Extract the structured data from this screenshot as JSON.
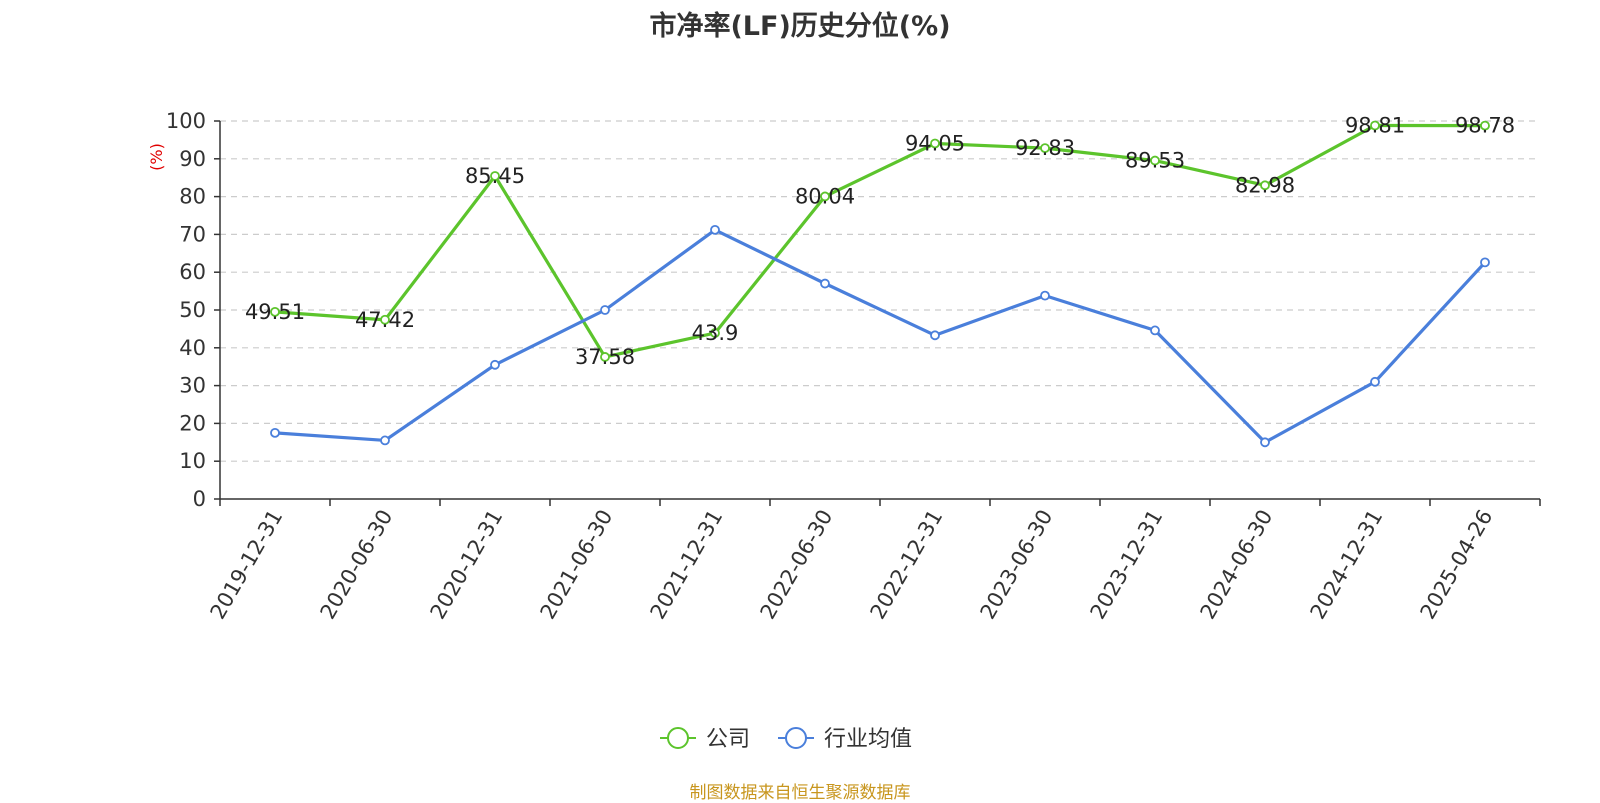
{
  "chart_data": {
    "type": "line",
    "title": "市净率(LF)历史分位(%)",
    "ylabel": "(%)",
    "xlabel": "",
    "ylim": [
      0,
      100
    ],
    "yticks": [
      0,
      10,
      20,
      30,
      40,
      50,
      60,
      70,
      80,
      90,
      100
    ],
    "grid": true,
    "legend_position": "bottom",
    "categories": [
      "2019-12-31",
      "2020-06-30",
      "2020-12-31",
      "2021-06-30",
      "2021-12-31",
      "2022-06-30",
      "2022-12-31",
      "2023-06-30",
      "2023-12-31",
      "2024-06-30",
      "2024-12-31",
      "2025-04-26"
    ],
    "series": [
      {
        "name": "公司",
        "color": "#5cc42c",
        "values": [
          49.51,
          47.42,
          85.45,
          37.58,
          43.9,
          80.04,
          94.05,
          92.83,
          89.53,
          82.98,
          98.81,
          98.78
        ],
        "labels": [
          "49.51",
          "47.42",
          "85.45",
          "37.58",
          "43.9",
          "80.04",
          "94.05",
          "92.83",
          "89.53",
          "82.98",
          "98.81",
          "98.78"
        ]
      },
      {
        "name": "行业均值",
        "color": "#4a7fdb",
        "values": [
          17.5,
          15.5,
          35.5,
          50.0,
          71.2,
          57.0,
          43.3,
          53.8,
          44.6,
          15.0,
          31.0,
          62.6
        ]
      }
    ]
  },
  "source": "制图数据来自恒生聚源数据库"
}
